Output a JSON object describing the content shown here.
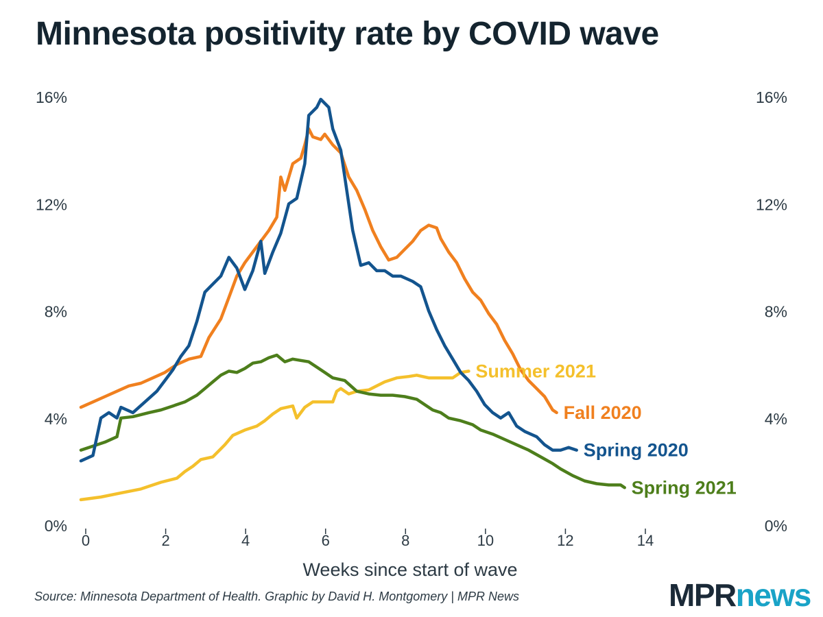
{
  "title": "Minnesota positivity rate by COVID wave",
  "source": "Source: Minnesota Department of Health. Graphic by David H. Montgomery | MPR News",
  "logo": {
    "part1": "MPR",
    "part2": "news"
  },
  "chart_data": {
    "type": "line",
    "xlabel": "Weeks since start of wave",
    "ylabel": "",
    "xlim": [
      0,
      14
    ],
    "ylim": [
      0,
      16
    ],
    "xticks": [
      0,
      2,
      4,
      6,
      8,
      10,
      12,
      14
    ],
    "xtick_labels": [
      "0",
      "2",
      "4",
      "6",
      "8",
      "10",
      "12",
      "14"
    ],
    "yticks": [
      0,
      4,
      8,
      12,
      16
    ],
    "ytick_labels": [
      "0%",
      "4%",
      "8%",
      "12%",
      "16%"
    ],
    "grid": false,
    "series": [
      {
        "name": "Fall 2020",
        "color": "#f0801f",
        "points": [
          [
            0,
            4.4
          ],
          [
            0.3,
            4.6
          ],
          [
            0.6,
            4.8
          ],
          [
            0.9,
            5.0
          ],
          [
            1.2,
            5.2
          ],
          [
            1.5,
            5.3
          ],
          [
            1.8,
            5.5
          ],
          [
            2.1,
            5.7
          ],
          [
            2.4,
            6.0
          ],
          [
            2.7,
            6.2
          ],
          [
            3.0,
            6.3
          ],
          [
            3.2,
            7.0
          ],
          [
            3.5,
            7.7
          ],
          [
            3.7,
            8.5
          ],
          [
            3.9,
            9.3
          ],
          [
            4.1,
            9.8
          ],
          [
            4.3,
            10.2
          ],
          [
            4.5,
            10.6
          ],
          [
            4.7,
            11.0
          ],
          [
            4.9,
            11.5
          ],
          [
            5.0,
            13.0
          ],
          [
            5.1,
            12.5
          ],
          [
            5.3,
            13.5
          ],
          [
            5.5,
            13.7
          ],
          [
            5.6,
            14.2
          ],
          [
            5.7,
            14.8
          ],
          [
            5.8,
            14.5
          ],
          [
            6.0,
            14.4
          ],
          [
            6.1,
            14.6
          ],
          [
            6.3,
            14.2
          ],
          [
            6.5,
            13.9
          ],
          [
            6.7,
            13.0
          ],
          [
            6.9,
            12.5
          ],
          [
            7.1,
            11.8
          ],
          [
            7.3,
            11.0
          ],
          [
            7.5,
            10.4
          ],
          [
            7.7,
            9.9
          ],
          [
            7.9,
            10.0
          ],
          [
            8.1,
            10.3
          ],
          [
            8.3,
            10.6
          ],
          [
            8.5,
            11.0
          ],
          [
            8.7,
            11.2
          ],
          [
            8.9,
            11.1
          ],
          [
            9.0,
            10.7
          ],
          [
            9.2,
            10.2
          ],
          [
            9.4,
            9.8
          ],
          [
            9.6,
            9.2
          ],
          [
            9.8,
            8.7
          ],
          [
            10.0,
            8.4
          ],
          [
            10.2,
            7.9
          ],
          [
            10.4,
            7.5
          ],
          [
            10.6,
            6.9
          ],
          [
            10.8,
            6.4
          ],
          [
            11.0,
            5.8
          ],
          [
            11.2,
            5.4
          ],
          [
            11.4,
            5.1
          ],
          [
            11.6,
            4.8
          ],
          [
            11.8,
            4.3
          ],
          [
            11.9,
            4.2
          ]
        ]
      },
      {
        "name": "Spring 2020",
        "color": "#13548e",
        "points": [
          [
            0,
            2.4
          ],
          [
            0.3,
            2.6
          ],
          [
            0.5,
            4.0
          ],
          [
            0.7,
            4.2
          ],
          [
            0.9,
            4.0
          ],
          [
            1.0,
            4.4
          ],
          [
            1.3,
            4.2
          ],
          [
            1.6,
            4.6
          ],
          [
            1.9,
            5.0
          ],
          [
            2.1,
            5.4
          ],
          [
            2.3,
            5.8
          ],
          [
            2.5,
            6.3
          ],
          [
            2.7,
            6.7
          ],
          [
            2.9,
            7.6
          ],
          [
            3.1,
            8.7
          ],
          [
            3.3,
            9.0
          ],
          [
            3.5,
            9.3
          ],
          [
            3.7,
            10.0
          ],
          [
            3.9,
            9.6
          ],
          [
            4.1,
            8.8
          ],
          [
            4.3,
            9.5
          ],
          [
            4.5,
            10.6
          ],
          [
            4.6,
            9.4
          ],
          [
            4.8,
            10.2
          ],
          [
            5.0,
            10.9
          ],
          [
            5.2,
            12.0
          ],
          [
            5.4,
            12.2
          ],
          [
            5.6,
            13.5
          ],
          [
            5.7,
            15.3
          ],
          [
            5.9,
            15.6
          ],
          [
            6.0,
            15.9
          ],
          [
            6.2,
            15.6
          ],
          [
            6.3,
            14.8
          ],
          [
            6.5,
            14.0
          ],
          [
            6.6,
            13.0
          ],
          [
            6.8,
            11.0
          ],
          [
            7.0,
            9.7
          ],
          [
            7.2,
            9.8
          ],
          [
            7.4,
            9.5
          ],
          [
            7.6,
            9.5
          ],
          [
            7.8,
            9.3
          ],
          [
            8.0,
            9.3
          ],
          [
            8.3,
            9.1
          ],
          [
            8.5,
            8.9
          ],
          [
            8.7,
            8.0
          ],
          [
            8.9,
            7.3
          ],
          [
            9.1,
            6.7
          ],
          [
            9.3,
            6.2
          ],
          [
            9.5,
            5.7
          ],
          [
            9.7,
            5.4
          ],
          [
            9.9,
            5.0
          ],
          [
            10.1,
            4.5
          ],
          [
            10.3,
            4.2
          ],
          [
            10.5,
            4.0
          ],
          [
            10.7,
            4.2
          ],
          [
            10.9,
            3.7
          ],
          [
            11.1,
            3.5
          ],
          [
            11.4,
            3.3
          ],
          [
            11.6,
            3.0
          ],
          [
            11.8,
            2.8
          ],
          [
            12.0,
            2.8
          ],
          [
            12.2,
            2.9
          ],
          [
            12.4,
            2.8
          ]
        ]
      },
      {
        "name": "Summer 2021",
        "color": "#f4c02c",
        "points": [
          [
            0,
            0.95
          ],
          [
            0.5,
            1.05
          ],
          [
            1.0,
            1.2
          ],
          [
            1.5,
            1.35
          ],
          [
            2.0,
            1.6
          ],
          [
            2.4,
            1.75
          ],
          [
            2.6,
            2.0
          ],
          [
            2.8,
            2.2
          ],
          [
            3.0,
            2.45
          ],
          [
            3.3,
            2.55
          ],
          [
            3.6,
            3.0
          ],
          [
            3.8,
            3.35
          ],
          [
            4.1,
            3.55
          ],
          [
            4.4,
            3.7
          ],
          [
            4.6,
            3.9
          ],
          [
            4.8,
            4.15
          ],
          [
            5.0,
            4.35
          ],
          [
            5.3,
            4.45
          ],
          [
            5.4,
            4.0
          ],
          [
            5.6,
            4.4
          ],
          [
            5.8,
            4.6
          ],
          [
            6.0,
            4.6
          ],
          [
            6.3,
            4.6
          ],
          [
            6.4,
            5.0
          ],
          [
            6.5,
            5.1
          ],
          [
            6.7,
            4.9
          ],
          [
            6.9,
            5.0
          ],
          [
            7.2,
            5.05
          ],
          [
            7.4,
            5.2
          ],
          [
            7.6,
            5.35
          ],
          [
            7.9,
            5.5
          ],
          [
            8.2,
            5.55
          ],
          [
            8.4,
            5.6
          ],
          [
            8.7,
            5.5
          ],
          [
            9.0,
            5.5
          ],
          [
            9.3,
            5.5
          ],
          [
            9.5,
            5.7
          ],
          [
            9.7,
            5.75
          ]
        ]
      },
      {
        "name": "Spring 2021",
        "color": "#4d7e1b",
        "points": [
          [
            0,
            2.8
          ],
          [
            0.3,
            2.95
          ],
          [
            0.6,
            3.1
          ],
          [
            0.9,
            3.3
          ],
          [
            1.0,
            4.0
          ],
          [
            1.3,
            4.05
          ],
          [
            1.7,
            4.2
          ],
          [
            2.0,
            4.3
          ],
          [
            2.3,
            4.45
          ],
          [
            2.6,
            4.6
          ],
          [
            2.9,
            4.85
          ],
          [
            3.1,
            5.1
          ],
          [
            3.3,
            5.35
          ],
          [
            3.5,
            5.6
          ],
          [
            3.7,
            5.75
          ],
          [
            3.9,
            5.7
          ],
          [
            4.1,
            5.85
          ],
          [
            4.3,
            6.05
          ],
          [
            4.5,
            6.1
          ],
          [
            4.7,
            6.25
          ],
          [
            4.9,
            6.35
          ],
          [
            5.1,
            6.1
          ],
          [
            5.3,
            6.2
          ],
          [
            5.5,
            6.15
          ],
          [
            5.7,
            6.1
          ],
          [
            5.9,
            5.9
          ],
          [
            6.1,
            5.7
          ],
          [
            6.3,
            5.5
          ],
          [
            6.6,
            5.4
          ],
          [
            6.9,
            5.0
          ],
          [
            7.2,
            4.9
          ],
          [
            7.5,
            4.85
          ],
          [
            7.8,
            4.85
          ],
          [
            8.1,
            4.8
          ],
          [
            8.4,
            4.7
          ],
          [
            8.6,
            4.5
          ],
          [
            8.8,
            4.3
          ],
          [
            9.0,
            4.2
          ],
          [
            9.2,
            4.0
          ],
          [
            9.5,
            3.9
          ],
          [
            9.8,
            3.75
          ],
          [
            10.0,
            3.55
          ],
          [
            10.3,
            3.4
          ],
          [
            10.6,
            3.2
          ],
          [
            10.9,
            3.0
          ],
          [
            11.2,
            2.8
          ],
          [
            11.5,
            2.55
          ],
          [
            11.8,
            2.3
          ],
          [
            12.0,
            2.1
          ],
          [
            12.3,
            1.85
          ],
          [
            12.6,
            1.65
          ],
          [
            12.9,
            1.55
          ],
          [
            13.2,
            1.5
          ],
          [
            13.5,
            1.5
          ],
          [
            13.6,
            1.4
          ]
        ]
      }
    ],
    "annotations": [
      {
        "text": "Summer 2021",
        "series": "Summer 2021",
        "color": "#f4c02c"
      },
      {
        "text": "Fall 2020",
        "series": "Fall 2020",
        "color": "#f0801f"
      },
      {
        "text": "Spring 2020",
        "series": "Spring 2020",
        "color": "#13548e"
      },
      {
        "text": "Spring 2021",
        "series": "Spring 2021",
        "color": "#4d7e1b"
      }
    ]
  }
}
